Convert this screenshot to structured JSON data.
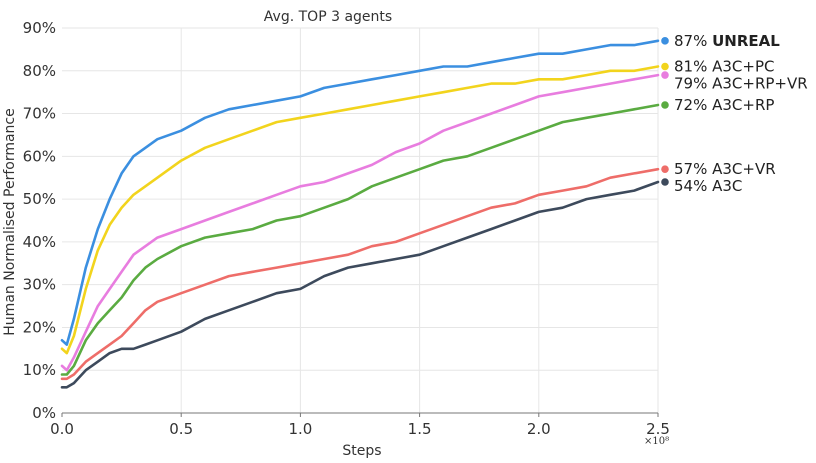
{
  "chart_data": {
    "type": "line",
    "title": "Avg. TOP 3 agents",
    "xlabel": "Steps",
    "ylabel": "Human Normalised Performance",
    "x_multiplier": "×10⁸",
    "xlim": [
      0,
      2.5
    ],
    "ylim": [
      0,
      90
    ],
    "x_ticks": [
      "0.0",
      "0.5",
      "1.0",
      "1.5",
      "2.0",
      "2.5"
    ],
    "y_ticks": [
      "0%",
      "10%",
      "20%",
      "30%",
      "40%",
      "50%",
      "60%",
      "70%",
      "80%",
      "90%"
    ],
    "grid": true,
    "legend_position": "right",
    "x": [
      0.0,
      0.02,
      0.05,
      0.1,
      0.15,
      0.2,
      0.25,
      0.3,
      0.35,
      0.4,
      0.5,
      0.6,
      0.7,
      0.8,
      0.9,
      1.0,
      1.1,
      1.2,
      1.3,
      1.4,
      1.5,
      1.6,
      1.7,
      1.8,
      1.9,
      2.0,
      2.1,
      2.2,
      2.3,
      2.4,
      2.5
    ],
    "series": [
      {
        "name": "UNREAL",
        "final_label": "87%",
        "bold": true,
        "color": "#3b8fe0",
        "values": [
          17,
          16,
          22,
          34,
          43,
          50,
          56,
          60,
          62,
          64,
          66,
          69,
          71,
          72,
          73,
          74,
          76,
          77,
          78,
          79,
          80,
          81,
          81,
          82,
          83,
          84,
          84,
          85,
          86,
          86,
          87
        ]
      },
      {
        "name": "A3C+PC",
        "final_label": "81%",
        "bold": false,
        "color": "#f2d41d",
        "values": [
          15,
          14,
          18,
          29,
          38,
          44,
          48,
          51,
          53,
          55,
          59,
          62,
          64,
          66,
          68,
          69,
          70,
          71,
          72,
          73,
          74,
          75,
          76,
          77,
          77,
          78,
          78,
          79,
          80,
          80,
          81
        ]
      },
      {
        "name": "A3C+RP+VR",
        "final_label": "79%",
        "bold": false,
        "color": "#e87ddf",
        "values": [
          11,
          10,
          13,
          19,
          25,
          29,
          33,
          37,
          39,
          41,
          43,
          45,
          47,
          49,
          51,
          53,
          54,
          56,
          58,
          61,
          63,
          66,
          68,
          70,
          72,
          74,
          75,
          76,
          77,
          78,
          79
        ]
      },
      {
        "name": "A3C+RP",
        "final_label": "72%",
        "bold": false,
        "color": "#5aab41",
        "values": [
          9,
          9,
          11,
          17,
          21,
          24,
          27,
          31,
          34,
          36,
          39,
          41,
          42,
          43,
          45,
          46,
          48,
          50,
          53,
          55,
          57,
          59,
          60,
          62,
          64,
          66,
          68,
          69,
          70,
          71,
          72
        ]
      },
      {
        "name": "A3C+VR",
        "final_label": "57%",
        "bold": false,
        "color": "#ee6d69",
        "values": [
          8,
          8,
          9,
          12,
          14,
          16,
          18,
          21,
          24,
          26,
          28,
          30,
          32,
          33,
          34,
          35,
          36,
          37,
          39,
          40,
          42,
          44,
          46,
          48,
          49,
          51,
          52,
          53,
          55,
          56,
          57
        ]
      },
      {
        "name": "A3C",
        "final_label": "54%",
        "bold": false,
        "color": "#3d4a5c",
        "values": [
          6,
          6,
          7,
          10,
          12,
          14,
          15,
          15,
          16,
          17,
          19,
          22,
          24,
          26,
          28,
          29,
          32,
          34,
          35,
          36,
          37,
          39,
          41,
          43,
          45,
          47,
          48,
          50,
          51,
          52,
          54
        ]
      }
    ]
  }
}
